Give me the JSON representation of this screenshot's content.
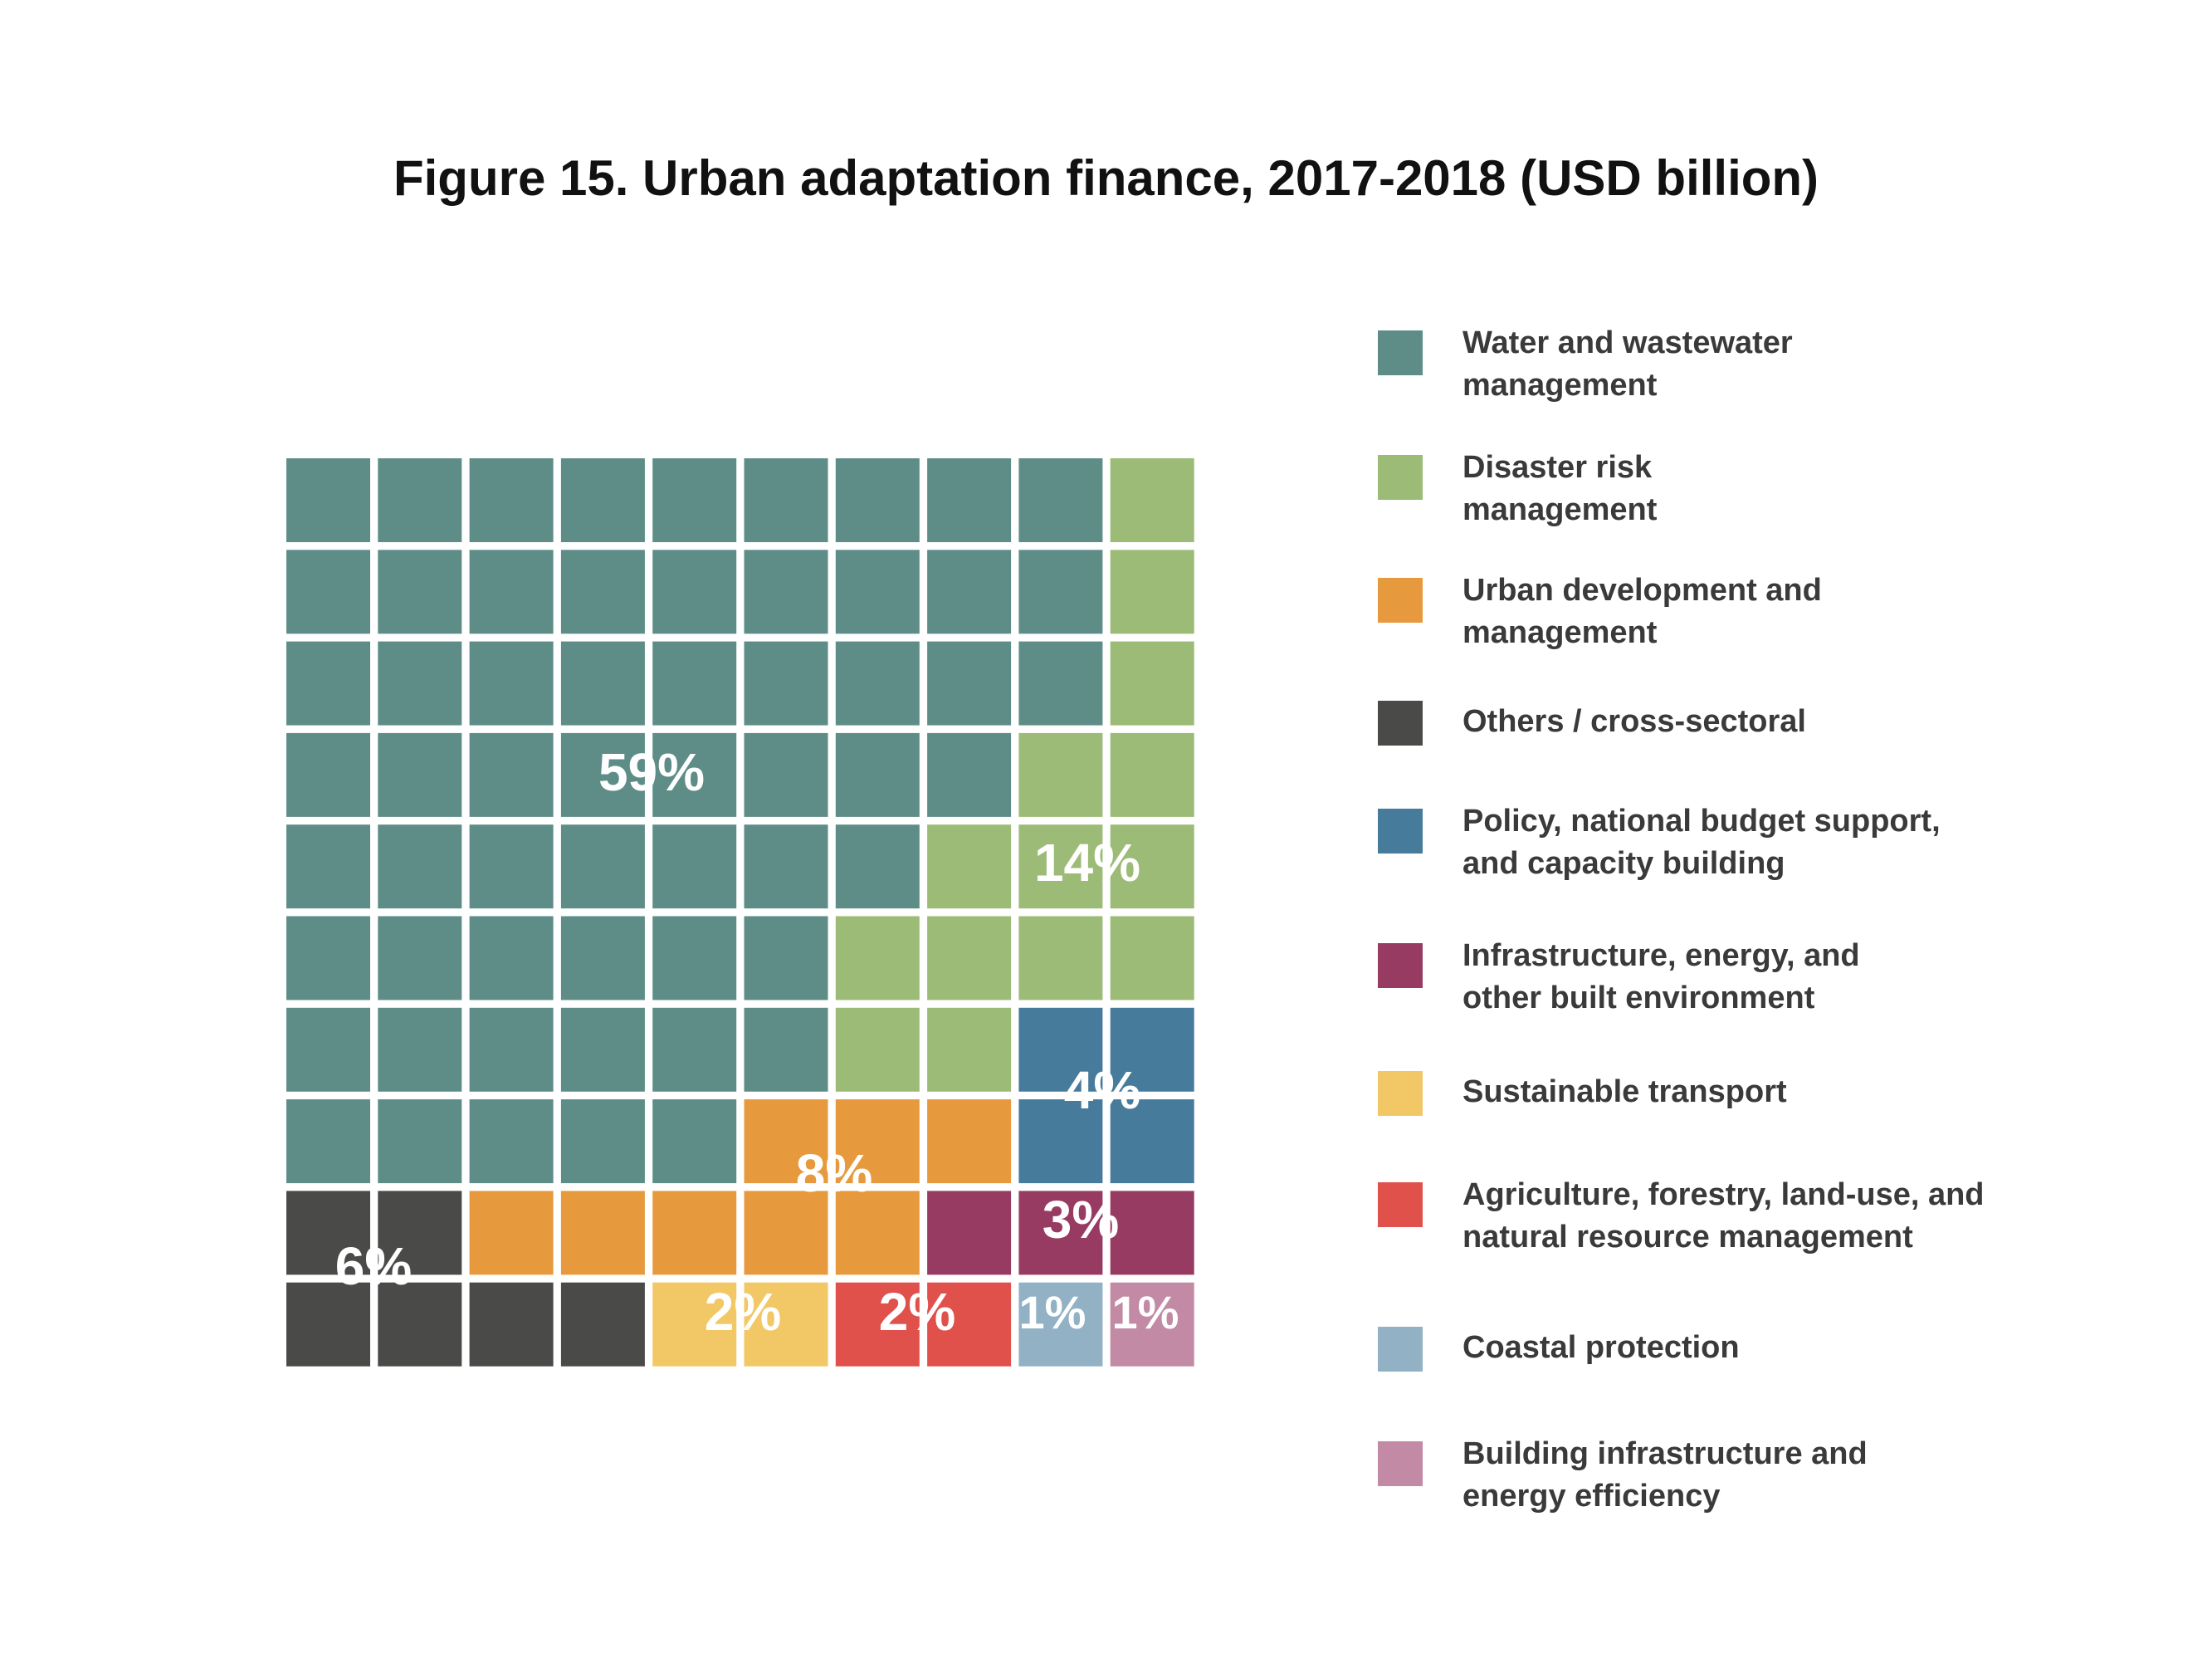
{
  "title": "Figure 15. Urban adaptation finance, 2017-2018 (USD billion)",
  "chart_data": {
    "type": "waffle",
    "grid": [
      10,
      10
    ],
    "categories": [
      {
        "name": "Water and wastewater management",
        "percent": 59,
        "label": "59%",
        "color": "#5e8d88"
      },
      {
        "name": "Disaster risk management",
        "percent": 14,
        "label": "14%",
        "color": "#9cbb77"
      },
      {
        "name": "Urban development and management",
        "percent": 8,
        "label": "8%",
        "color": "#e79a3d"
      },
      {
        "name": "Others / cross-sectoral",
        "percent": 6,
        "label": "6%",
        "color": "#4a4a48"
      },
      {
        "name": "Policy, national budget support, and capacity building",
        "percent": 4,
        "label": "4%",
        "color": "#477b9c"
      },
      {
        "name": "Infrastructure, energy, and other built environment",
        "percent": 3,
        "label": "3%",
        "color": "#983b63"
      },
      {
        "name": "Sustainable transport",
        "percent": 2,
        "label": "2%",
        "color": "#f1c865"
      },
      {
        "name": "Agriculture, forestry, land-use, and natural resource management",
        "percent": 2,
        "label": "2%",
        "color": "#e0514b"
      },
      {
        "name": "Coastal protection",
        "percent": 1,
        "label": "1%",
        "color": "#92b1c5"
      },
      {
        "name": "Building infrastructure and energy efficiency",
        "percent": 1,
        "label": "1%",
        "color": "#c28aa4"
      }
    ]
  },
  "legend": [
    {
      "line1": "Water and wastewater",
      "line2": "management"
    },
    {
      "line1": "Disaster risk",
      "line2": "management"
    },
    {
      "line1": "Urban development and",
      "line2": "management"
    },
    {
      "line1": "Others / cross-sectoral",
      "line2": ""
    },
    {
      "line1": "Policy, national budget support,",
      "line2": "and capacity building"
    },
    {
      "line1": "Infrastructure, energy, and",
      "line2": "other built environment"
    },
    {
      "line1": "Sustainable transport",
      "line2": ""
    },
    {
      "line1": "Agriculture, forestry, land-use, and",
      "line2": "natural resource management"
    },
    {
      "line1": "Coastal protection",
      "line2": ""
    },
    {
      "line1": "Building infrastructure and",
      "line2": "energy efficiency"
    }
  ]
}
